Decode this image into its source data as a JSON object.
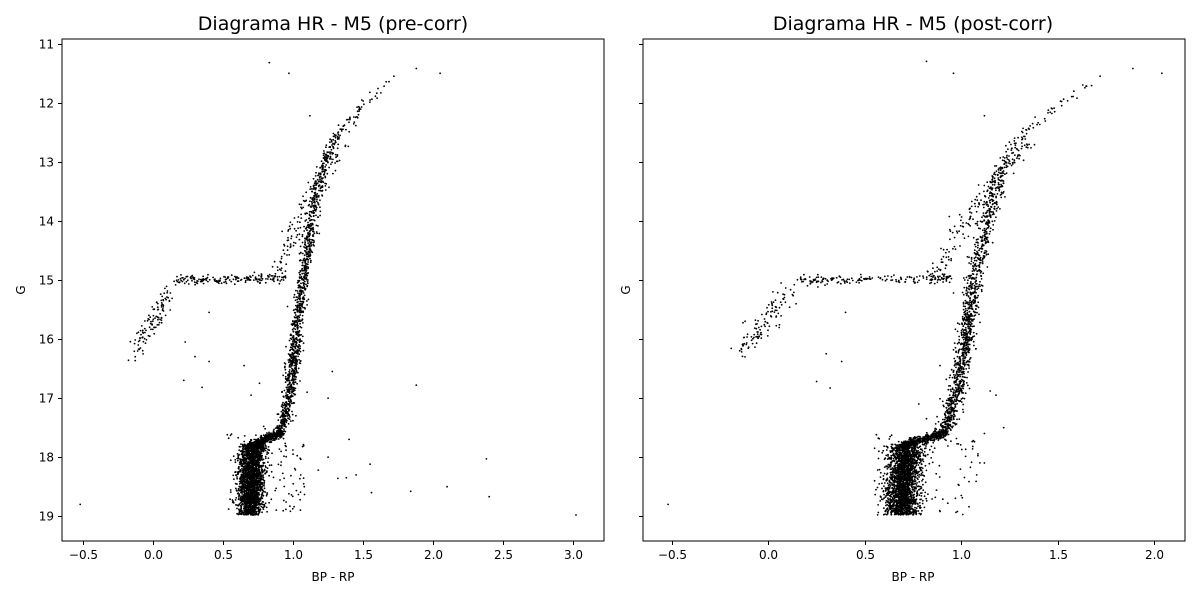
{
  "figure": {
    "colors": {
      "background": "#ffffff",
      "points": "#000000",
      "axes": "#000000"
    }
  },
  "chart_data": [
    {
      "type": "scatter",
      "title": "Diagrama HR - M5 (pre-corr)",
      "xlabel": "BP - RP",
      "ylabel": "G",
      "xlim": [
        -0.65,
        3.22
      ],
      "ylim": [
        19.42,
        10.92
      ],
      "y_inverted": true,
      "grid": false,
      "xticks": [
        -0.5,
        0.0,
        0.5,
        1.0,
        1.5,
        2.0,
        2.5,
        3.0
      ],
      "xtick_labels": [
        "−0.5",
        "0.0",
        "0.5",
        "1.0",
        "1.5",
        "2.0",
        "2.5",
        "3.0"
      ],
      "yticks": [
        11,
        12,
        13,
        14,
        15,
        16,
        17,
        18,
        19
      ],
      "ytick_labels": [
        "11",
        "12",
        "13",
        "14",
        "15",
        "16",
        "17",
        "18",
        "19"
      ],
      "show_ytick_labels": true,
      "seed": 5,
      "marker_color": "#000000",
      "points": [
        [
          0.83,
          11.32
        ],
        [
          0.97,
          11.5
        ],
        [
          1.88,
          11.42
        ],
        [
          2.05,
          11.5
        ],
        [
          1.72,
          11.55
        ],
        [
          1.65,
          11.72
        ],
        [
          1.6,
          11.92
        ],
        [
          1.12,
          12.22
        ],
        [
          1.88,
          16.78
        ],
        [
          2.38,
          18.03
        ],
        [
          2.4,
          18.67
        ],
        [
          2.1,
          18.5
        ],
        [
          1.84,
          18.58
        ],
        [
          1.56,
          18.6
        ],
        [
          -0.52,
          18.8
        ],
        [
          3.02,
          18.98
        ],
        [
          1.0,
          17.95
        ],
        [
          1.45,
          18.3
        ],
        [
          1.55,
          18.12
        ],
        [
          1.32,
          18.36
        ],
        [
          0.53,
          17.62
        ],
        [
          0.54,
          17.68
        ],
        [
          0.64,
          17.96
        ],
        [
          0.97,
          18.62
        ],
        [
          1.05,
          18.72
        ],
        [
          0.95,
          18.76
        ],
        [
          1.08,
          18.5
        ],
        [
          1.25,
          17.0
        ],
        [
          1.1,
          16.9
        ],
        [
          0.22,
          16.7
        ],
        [
          0.35,
          16.82
        ],
        [
          0.65,
          16.45
        ],
        [
          0.4,
          15.55
        ],
        [
          0.3,
          16.3
        ],
        [
          1.0,
          16.3
        ],
        [
          0.4,
          16.38
        ],
        [
          0.23,
          16.05
        ],
        [
          1.03,
          15.38
        ],
        [
          1.28,
          16.55
        ],
        [
          0.96,
          15.45
        ],
        [
          1.02,
          17.3
        ],
        [
          0.8,
          17.52
        ],
        [
          0.79,
          17.48
        ],
        [
          0.82,
          17.72
        ],
        [
          0.92,
          16.9
        ],
        [
          1.38,
          18.35
        ],
        [
          1.25,
          18.0
        ],
        [
          1.18,
          18.22
        ],
        [
          1.4,
          17.7
        ],
        [
          0.7,
          16.95
        ],
        [
          0.76,
          16.75
        ]
      ]
    },
    {
      "type": "scatter",
      "title": "Diagrama HR - M5 (post-corr)",
      "xlabel": "BP - RP",
      "ylabel": "G",
      "xlim": [
        -0.65,
        2.16
      ],
      "ylim": [
        19.42,
        10.92
      ],
      "y_inverted": true,
      "grid": false,
      "xticks": [
        -0.5,
        0.0,
        0.5,
        1.0,
        1.5,
        2.0
      ],
      "xtick_labels": [
        "−0.5",
        "0.0",
        "0.5",
        "1.0",
        "1.5",
        "2.0"
      ],
      "yticks": [
        11,
        12,
        13,
        14,
        15,
        16,
        17,
        18,
        19
      ],
      "ytick_labels": [],
      "show_ytick_labels": false,
      "seed": 13,
      "marker_color": "#000000",
      "points": [
        [
          0.82,
          11.3
        ],
        [
          0.96,
          11.5
        ],
        [
          1.89,
          11.42
        ],
        [
          2.04,
          11.5
        ],
        [
          1.72,
          11.55
        ],
        [
          1.65,
          11.72
        ],
        [
          1.6,
          11.92
        ],
        [
          1.12,
          12.22
        ],
        [
          -0.52,
          18.8
        ],
        [
          1.22,
          17.5
        ],
        [
          1.12,
          17.6
        ],
        [
          1.06,
          17.82
        ],
        [
          1.0,
          18.65
        ],
        [
          0.98,
          18.92
        ],
        [
          0.93,
          18.78
        ],
        [
          0.56,
          17.62
        ],
        [
          0.57,
          17.68
        ],
        [
          0.32,
          16.83
        ],
        [
          0.25,
          16.72
        ],
        [
          0.4,
          15.55
        ],
        [
          0.3,
          16.25
        ],
        [
          0.89,
          16.45
        ],
        [
          1.15,
          16.88
        ],
        [
          0.98,
          16.3
        ],
        [
          0.38,
          16.38
        ],
        [
          1.02,
          15.45
        ],
        [
          1.05,
          15.38
        ],
        [
          0.96,
          15.22
        ],
        [
          0.82,
          17.35
        ],
        [
          0.78,
          17.1
        ],
        [
          0.94,
          16.95
        ],
        [
          1.18,
          16.95
        ],
        [
          1.08,
          18.3
        ],
        [
          1.12,
          18.1
        ]
      ]
    }
  ]
}
